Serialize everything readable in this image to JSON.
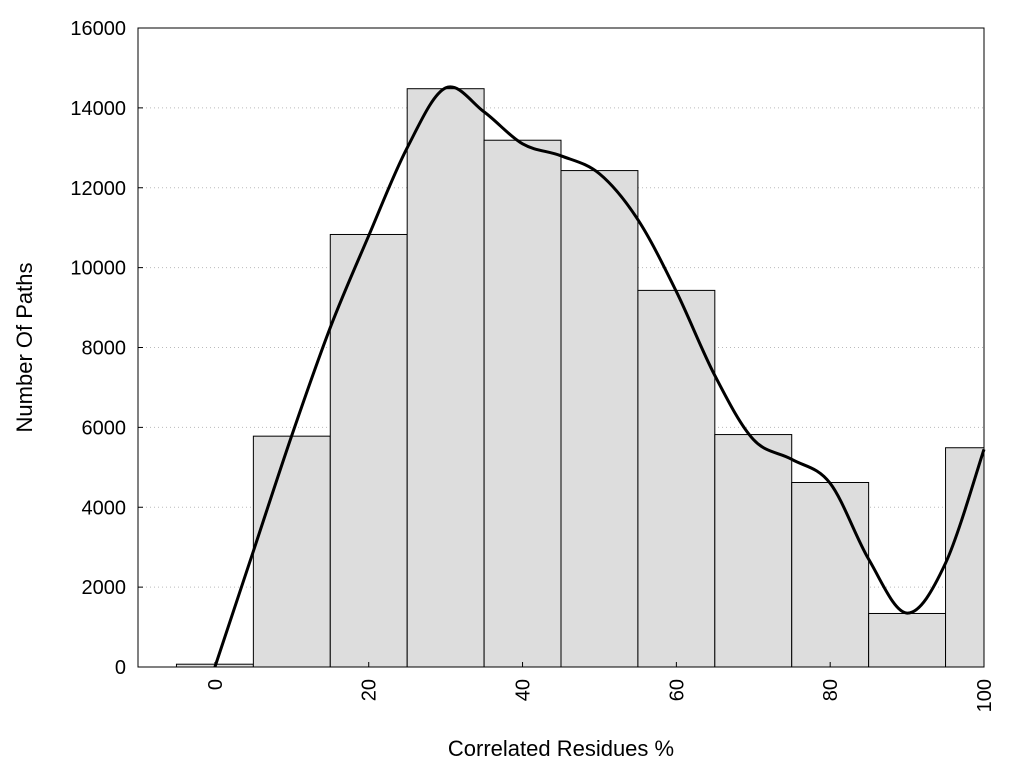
{
  "chart_data": {
    "type": "bar",
    "title": "",
    "xlabel": "Correlated Residues %",
    "ylabel": "Number Of Paths",
    "xlim": [
      -10,
      100
    ],
    "ylim": [
      0,
      16000
    ],
    "grid": true,
    "x_ticks": [
      "0",
      "20",
      "40",
      "60",
      "80",
      "100"
    ],
    "y_ticks": [
      "0",
      "2000",
      "4000",
      "6000",
      "8000",
      "10000",
      "12000",
      "14000",
      "16000"
    ],
    "bin_width": 10,
    "bin_centers": [
      0,
      10,
      20,
      30,
      40,
      50,
      60,
      70,
      80,
      90,
      100
    ],
    "values": [
      70,
      5780,
      10830,
      14480,
      13190,
      12430,
      9430,
      5820,
      4620,
      1340,
      5490
    ],
    "bar_color": "#dddddd",
    "bar_edge_color": "#000000",
    "curve_color": "#000000",
    "curve": {
      "x": [
        0,
        5,
        10,
        15,
        20,
        25,
        30,
        35,
        40,
        45,
        50,
        55,
        60,
        65,
        70,
        75,
        80,
        85,
        90,
        95,
        100
      ],
      "y": [
        0,
        2900,
        5800,
        8500,
        10800,
        13000,
        14500,
        13900,
        13100,
        12800,
        12350,
        11200,
        9400,
        7300,
        5700,
        5200,
        4600,
        2700,
        1350,
        2600,
        5450
      ]
    }
  }
}
